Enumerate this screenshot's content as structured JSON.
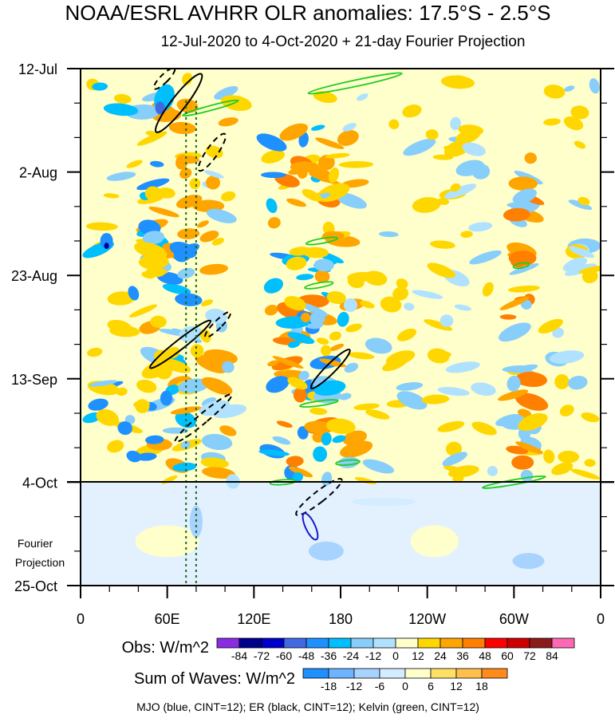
{
  "chart_data": {
    "type": "heatmap",
    "title": "NOAA/ESRL AVHRR OLR anomalies: 17.5°S - 2.5°S",
    "subtitle": "12-Jul-2020 to 4-Oct-2020 + 21-day Fourier Projection",
    "x_ticks": [
      "0",
      "60E",
      "120E",
      "180",
      "120W",
      "60W",
      "0"
    ],
    "x_tick_lon": [
      0,
      60,
      120,
      180,
      240,
      300,
      360
    ],
    "y_ticks": [
      "12-Jul",
      "2-Aug",
      "23-Aug",
      "13-Sep",
      "4-Oct",
      "25-Oct"
    ],
    "y_tick_day": [
      0,
      21,
      42,
      63,
      84,
      105
    ],
    "projection_start_day": 84,
    "end_day": 105,
    "projection_label": [
      "Fourier",
      "Projection"
    ],
    "obs_legend": {
      "label": "Obs: W/m^2",
      "ticks": [
        "-84",
        "-72",
        "-60",
        "-48",
        "-36",
        "-24",
        "-12",
        "0",
        "12",
        "24",
        "36",
        "48",
        "60",
        "72",
        "84"
      ],
      "colors": [
        "#8a2be2",
        "#00008b",
        "#0000cd",
        "#4169e1",
        "#1e90ff",
        "#00bfff",
        "#87cefa",
        "#b0e2ff",
        "#ffffcc",
        "#ffd700",
        "#ffa500",
        "#ff7f00",
        "#ff0000",
        "#cd0000",
        "#8b1a1a",
        "#ff69b4"
      ]
    },
    "waves_legend": {
      "label": "Sum of Waves: W/m^2",
      "ticks": [
        "-18",
        "-12",
        "-6",
        "0",
        "6",
        "12",
        "18"
      ],
      "colors": [
        "#1e90ff",
        "#6cb4ff",
        "#a8d3ff",
        "#d4ecff",
        "#ffffcc",
        "#ffe066",
        "#ffc04d",
        "#ff8c1a"
      ]
    },
    "footnote": "MJO (blue, CINT=12); ER (black, CINT=12); Kelvin (green, CINT=12)",
    "colors": {
      "mjo": "#1a1acc",
      "er": "#000000",
      "kelvin": "#22cc22",
      "marker": "#1a6b1a"
    },
    "marker_lines_lon": [
      73,
      80
    ]
  }
}
